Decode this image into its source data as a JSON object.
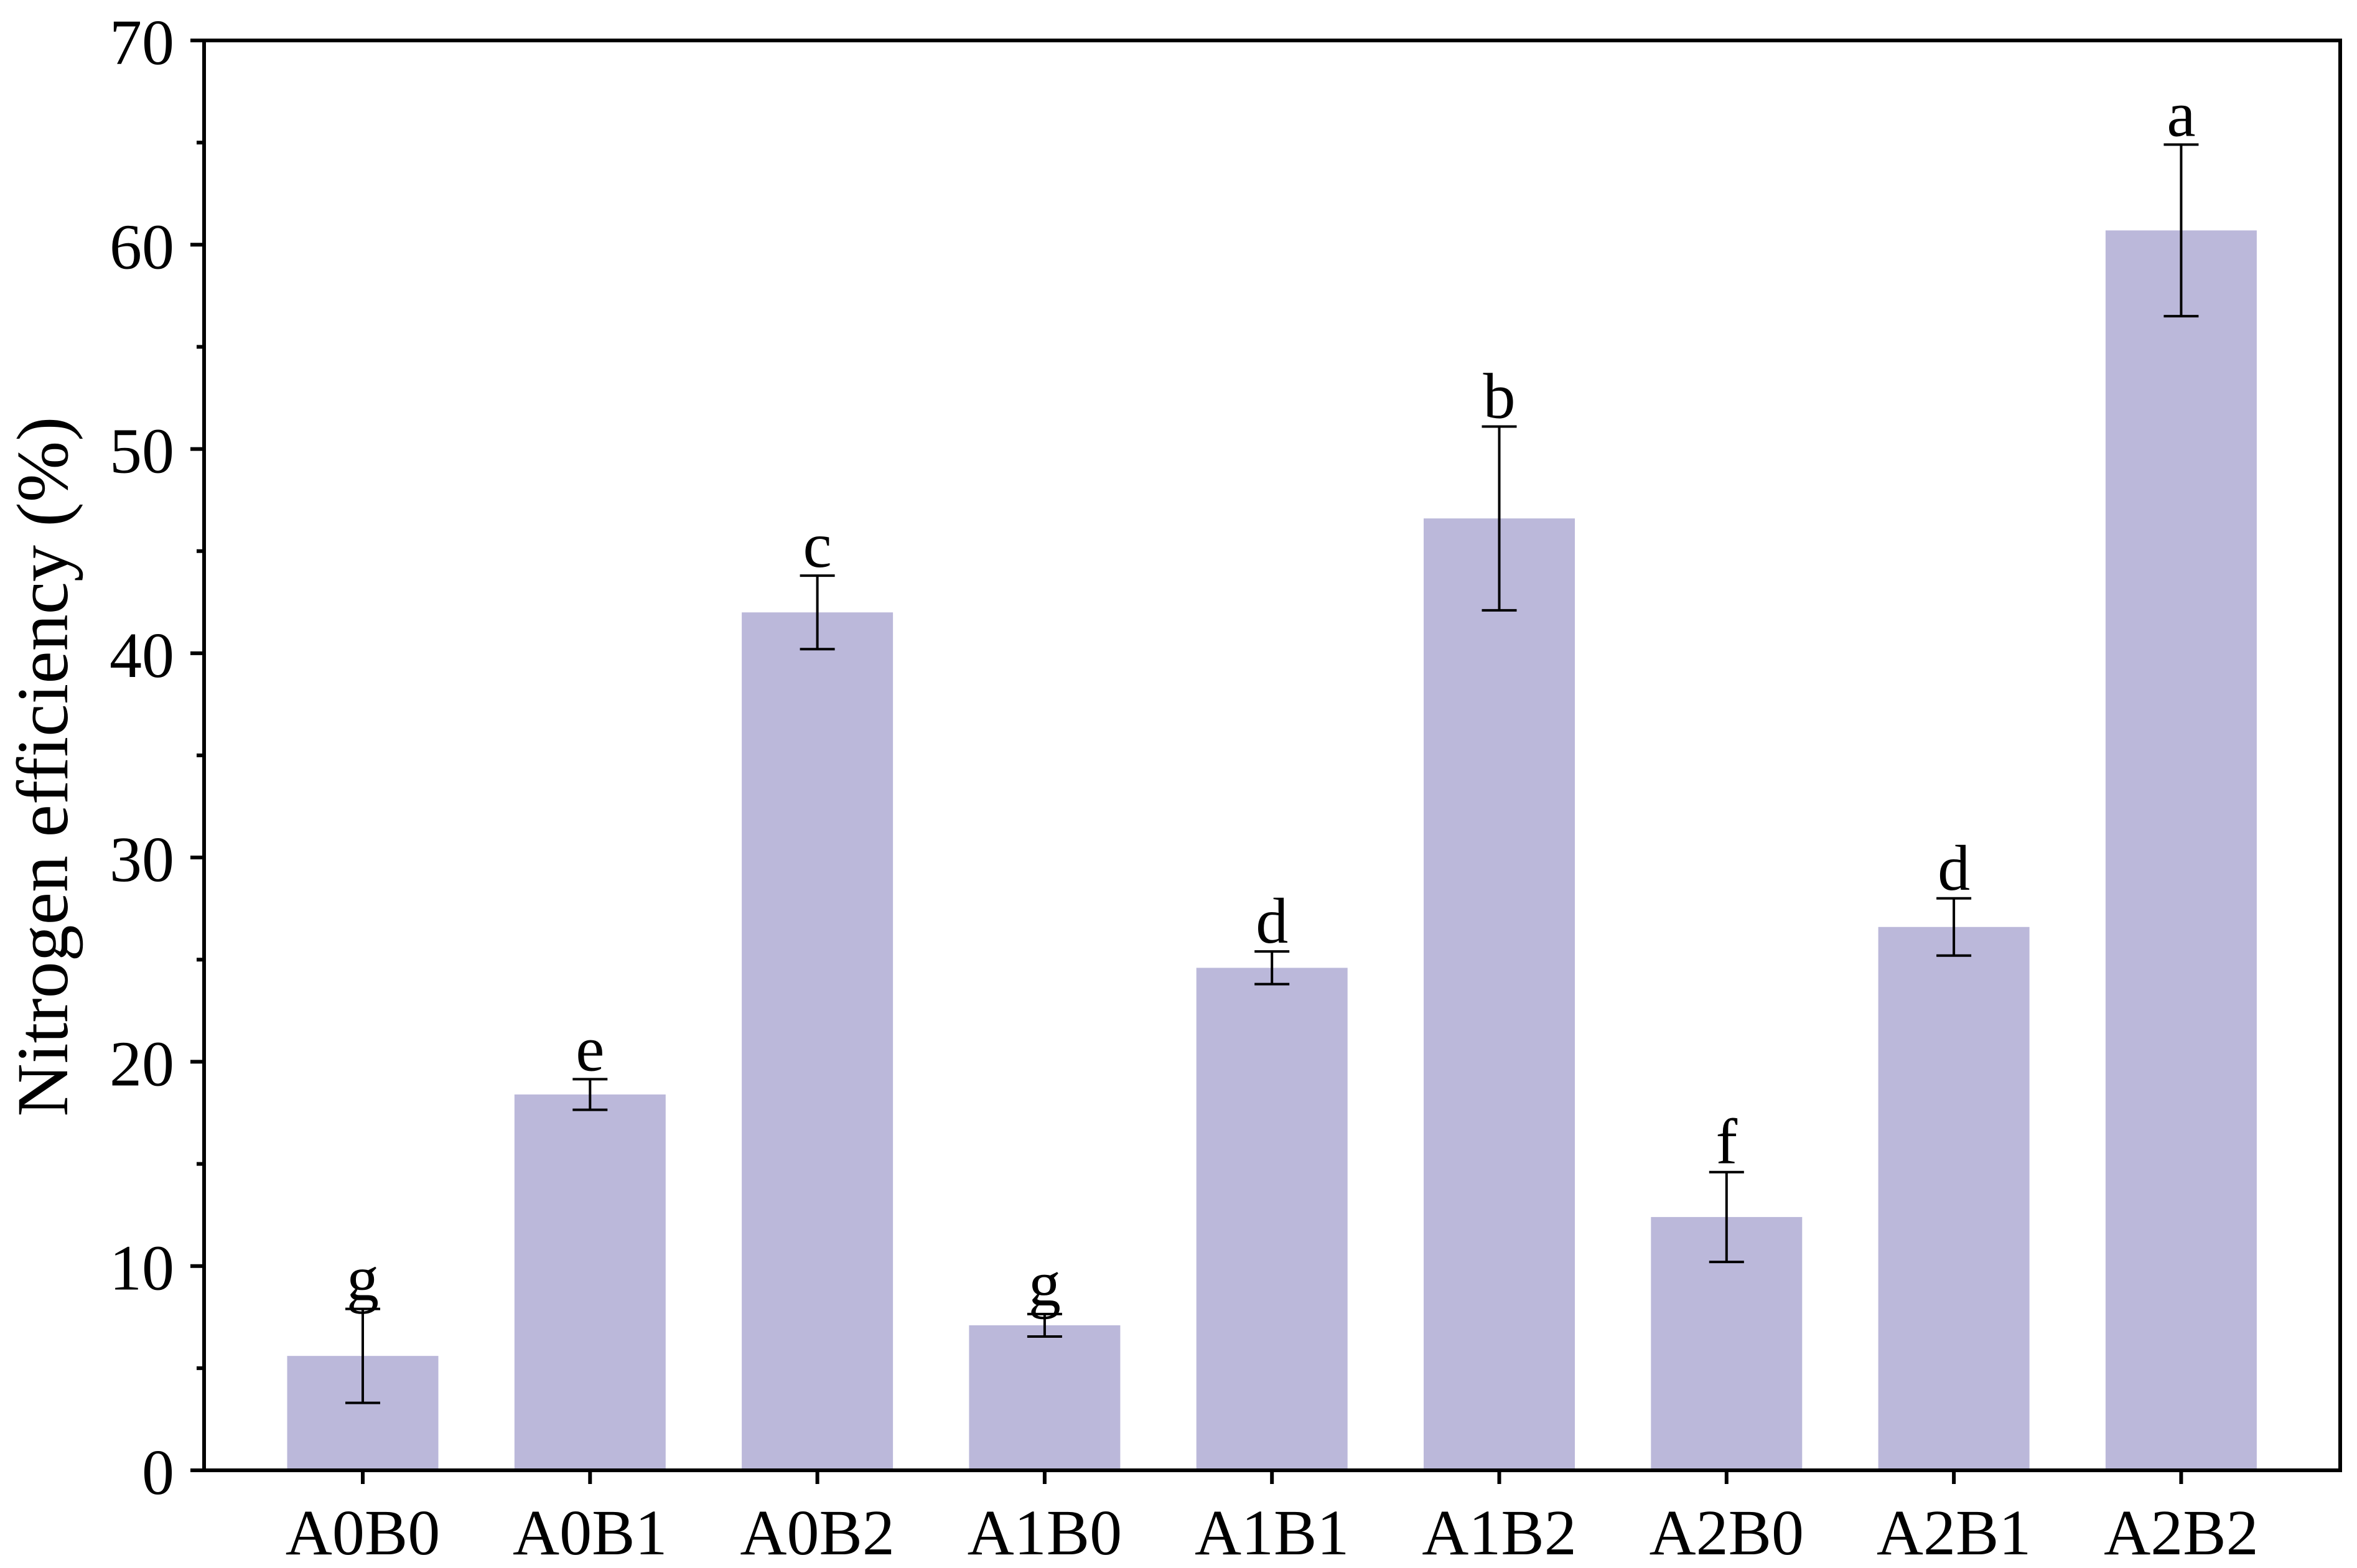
{
  "chart_data": {
    "type": "bar",
    "title": "",
    "xlabel": "",
    "ylabel": "Nitrogen efficiency (%)",
    "ylim": [
      0,
      70
    ],
    "yticks": [
      0,
      10,
      20,
      30,
      40,
      50,
      60,
      70
    ],
    "grid": false,
    "bar_color": "#bbb8da",
    "categories": [
      "A0B0",
      "A0B1",
      "A0B2",
      "A1B0",
      "A1B1",
      "A1B2",
      "A2B0",
      "A2B1",
      "A2B2"
    ],
    "values": [
      5.6,
      18.4,
      42.0,
      7.1,
      24.6,
      46.6,
      12.4,
      26.6,
      60.7
    ],
    "errors": [
      2.3,
      0.75,
      1.8,
      0.55,
      0.8,
      4.5,
      2.2,
      1.4,
      4.2
    ],
    "significance": [
      "g",
      "e",
      "c",
      "g",
      "d",
      "b",
      "f",
      "d",
      "a"
    ]
  }
}
